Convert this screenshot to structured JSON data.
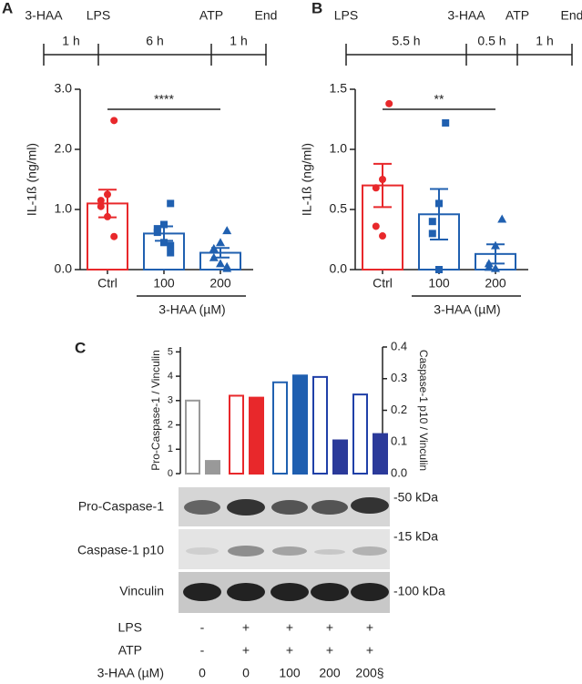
{
  "panel_labels": [
    "A",
    "B",
    "C"
  ],
  "timelines": [
    {
      "events": [
        "3-HAA",
        "LPS",
        "ATP",
        "End"
      ],
      "durations": [
        "1 h",
        "6 h",
        "1 h"
      ]
    },
    {
      "events": [
        "LPS",
        "3-HAA",
        "ATP",
        "End"
      ],
      "durations": [
        "5.5 h",
        "0.5 h",
        "1 h"
      ]
    }
  ],
  "chart_data": [
    {
      "type": "bar",
      "ylabel": "IL-1ß (ng/ml)",
      "categories": [
        "Ctrl",
        "100",
        "200"
      ],
      "group_label": "3-HAA (µM)",
      "values": [
        1.1,
        0.6,
        0.28
      ],
      "errors": [
        0.23,
        0.12,
        0.08
      ],
      "points": [
        [
          2.48,
          1.25,
          1.15,
          1.05,
          0.88,
          0.55
        ],
        [
          1.1,
          0.75,
          0.68,
          0.62,
          0.45,
          0.4,
          0.28
        ],
        [
          0.65,
          0.45,
          0.35,
          0.2,
          0.1,
          0.05,
          0.02
        ]
      ],
      "colors": [
        "#e8282b",
        "#2060b0",
        "#2060b0"
      ],
      "markers": [
        "circle",
        "square",
        "triangle"
      ],
      "significance": "****",
      "ylim": [
        0,
        3
      ],
      "yticks": [
        {
          "value": 0,
          "label": "0.0"
        },
        {
          "value": 1,
          "label": "1.0"
        },
        {
          "value": 2,
          "label": "2.0"
        },
        {
          "value": 3,
          "label": "3.0"
        }
      ]
    },
    {
      "type": "bar",
      "ylabel": "IL-1ß (ng/ml)",
      "categories": [
        "Ctrl",
        "100",
        "200"
      ],
      "group_label": "3-HAA (µM)",
      "values": [
        0.7,
        0.46,
        0.13
      ],
      "errors": [
        0.18,
        0.21,
        0.08
      ],
      "points": [
        [
          1.38,
          0.75,
          0.68,
          0.36,
          0.28
        ],
        [
          1.22,
          0.55,
          0.4,
          0.3,
          0.0
        ],
        [
          0.42,
          0.2,
          0.05,
          0.02,
          0.01
        ]
      ],
      "colors": [
        "#e8282b",
        "#2060b0",
        "#2060b0"
      ],
      "markers": [
        "circle",
        "square",
        "triangle"
      ],
      "significance": "**",
      "ylim": [
        0,
        1.5
      ],
      "yticks": [
        {
          "value": 0,
          "label": "0.0"
        },
        {
          "value": 0.5,
          "label": "0.5"
        },
        {
          "value": 1,
          "label": "1.0"
        },
        {
          "value": 1.5,
          "label": "1.5"
        }
      ]
    },
    {
      "type": "dualbar",
      "ylabel": "Pro-Caspase-1 / Vinculin",
      "y2label": "Caspase-1 p10 / Vinculin",
      "ylim": [
        0,
        5.2
      ],
      "yticks": [
        0,
        1,
        2,
        3,
        4,
        5
      ],
      "y2lim": [
        0,
        0.4
      ],
      "y2ticks": [
        {
          "value": 0,
          "label": "0.0"
        },
        {
          "value": 0.1,
          "label": "0.1"
        },
        {
          "value": 0.2,
          "label": "0.2"
        },
        {
          "value": 0.3,
          "label": "0.3"
        },
        {
          "value": 0.4,
          "label": "0.4"
        }
      ],
      "series": [
        {
          "values": [
            3.0,
            3.2,
            3.75,
            3.97,
            3.25
          ],
          "colors": [
            "#999999",
            "#e8282b",
            "#2060b0",
            "#2040a8",
            "#2040a8"
          ],
          "fill": false
        },
        {
          "axis": "y2",
          "values": [
            0.04,
            0.24,
            0.31,
            0.105,
            0.125
          ],
          "colors": [
            "#999999",
            "#e8282b",
            "#1f5fb0",
            "#2b3a9a",
            "#2b3a9a"
          ],
          "fill": true
        }
      ]
    }
  ],
  "blot": {
    "rows": [
      "Pro-Caspase-1",
      "Caspase-1 p10",
      "Vinculin"
    ],
    "markers": [
      "-50 kDa",
      "-15 kDa",
      "-100 kDa"
    ]
  },
  "conditions": {
    "labels": [
      "LPS",
      "ATP",
      "3-HAA (µM)"
    ],
    "rows": [
      [
        "-",
        "+",
        "+",
        "+",
        "+"
      ],
      [
        "-",
        "+",
        "+",
        "+",
        "+"
      ],
      [
        "0",
        "0",
        "100",
        "200",
        "200§"
      ]
    ]
  }
}
